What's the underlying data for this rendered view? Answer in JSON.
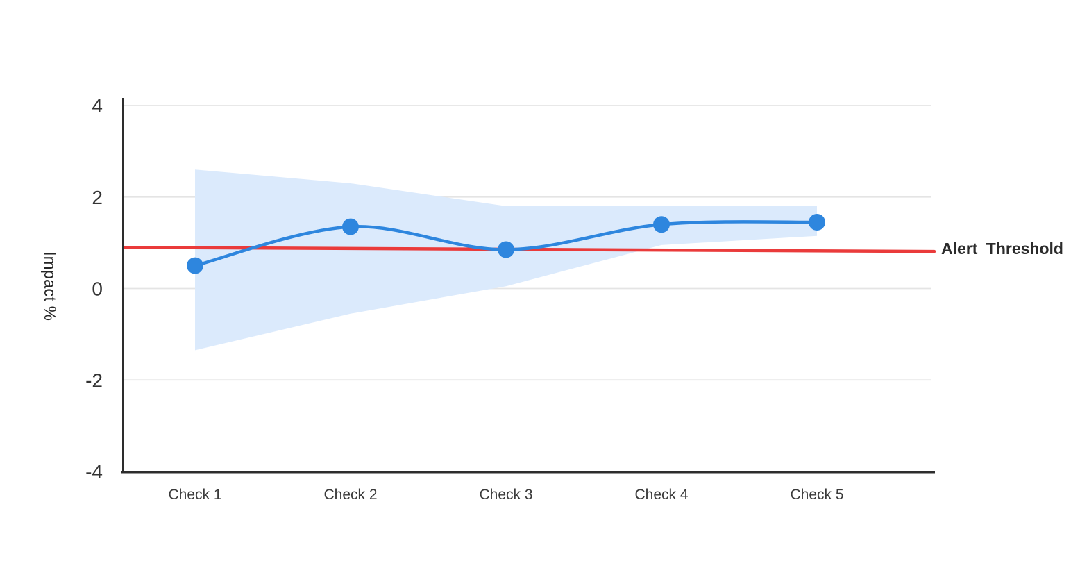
{
  "chart_data": {
    "type": "line",
    "title": "",
    "categories": [
      "Check 1",
      "Check 2",
      "Check 3",
      "Check 4",
      "Check 5"
    ],
    "series": [
      {
        "name": "Impact",
        "values": [
          0.5,
          1.35,
          0.85,
          1.4,
          1.45
        ],
        "color": "#2e86de",
        "marker": "circle"
      }
    ],
    "band": {
      "name": "confidence-band",
      "upper": [
        2.6,
        2.3,
        1.8,
        1.8,
        1.8
      ],
      "lower": [
        -1.35,
        -0.55,
        0.05,
        0.95,
        1.15
      ],
      "color": "#dbeafc"
    },
    "threshold": {
      "label": "Alert Threshold",
      "value_start": 0.9,
      "value_end": 0.81,
      "color": "#ea3b3b"
    },
    "xlabel": "",
    "ylabel": "Impact %",
    "ylim": [
      -4,
      4
    ],
    "yticks": [
      4,
      2,
      0,
      -2,
      -4
    ],
    "ytick_labels": [
      "4",
      "2",
      "0",
      "-2",
      "-4"
    ],
    "grid": true,
    "legend_position": "none"
  },
  "colors": {
    "background": "#ffffff",
    "grid": "#e4e4e4",
    "axis": "#2d2d2d",
    "tick_text": "#333333",
    "threshold_text": "#2b2b2b"
  }
}
